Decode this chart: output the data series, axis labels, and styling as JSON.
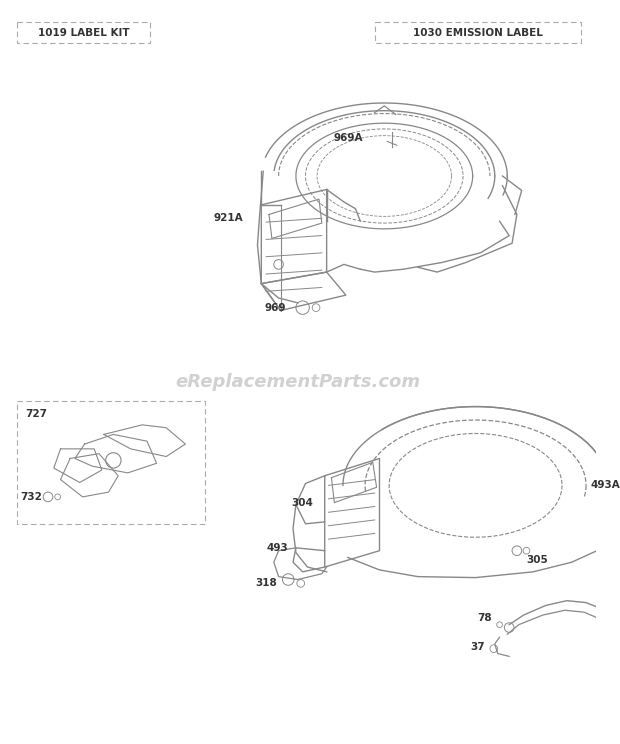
{
  "bg_color": "#ffffff",
  "line_color": "#777777",
  "text_color": "#333333",
  "label_box_left": "1019 LABEL KIT",
  "label_box_right": "1030 EMISSION LABEL",
  "watermark": "eReplacementParts.com"
}
